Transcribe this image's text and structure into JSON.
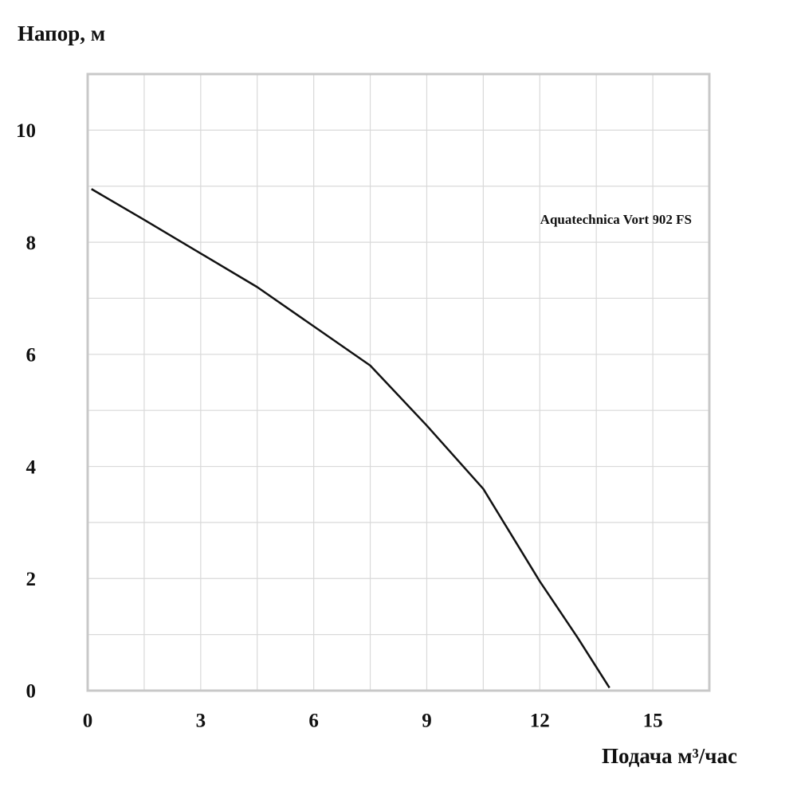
{
  "chart_data": {
    "type": "line",
    "y_label": "Напор, м",
    "x_label": "Подача  м³/час",
    "annotation": "Aquatechnica Vort 902 FS",
    "x": [
      0.1,
      1.5,
      3,
      4.5,
      6,
      7.5,
      9,
      10.5,
      12,
      13,
      13.85
    ],
    "series": [
      {
        "name": "Aquatechnica Vort 902 FS",
        "color": "#111111",
        "values": [
          8.95,
          8.4,
          7.8,
          7.2,
          6.5,
          5.8,
          4.73,
          3.6,
          1.95,
          0.95,
          0.05
        ]
      }
    ],
    "xlim": [
      0,
      16.5
    ],
    "xticks": [
      0,
      3,
      6,
      9,
      12,
      15
    ],
    "xminor": [
      1.5,
      4.5,
      7.5,
      10.5,
      13.5
    ],
    "ylim": [
      0,
      11
    ],
    "yticks": [
      0,
      2,
      4,
      6,
      8,
      10
    ],
    "yminor": [
      1,
      3,
      5,
      7,
      9,
      11
    ],
    "grid": true
  }
}
